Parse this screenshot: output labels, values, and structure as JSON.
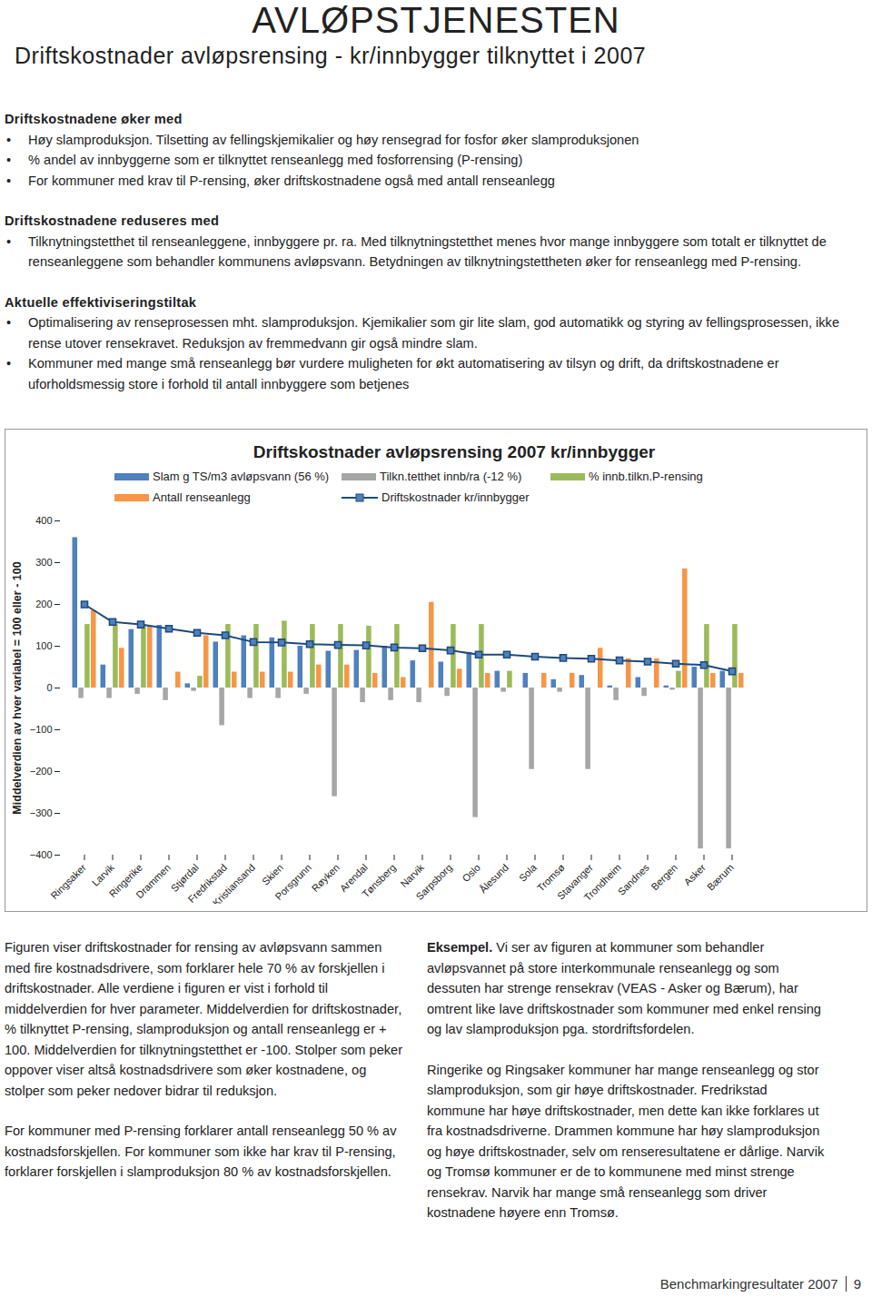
{
  "header": {
    "title": "AVLØPSTJENESTEN",
    "subtitle": "Driftskostnader avløpsrensing - kr/innbygger tilknyttet i 2007"
  },
  "sections": [
    {
      "heading": "Driftskostnadene øker med",
      "bullets": [
        "Høy slamproduksjon. Tilsetting av fellingskjemikalier og høy rensegrad for fosfor øker slamproduksjonen",
        "% andel av innbyggerne som er tilknyttet renseanlegg med fosforrensing (P-rensing)",
        "For kommuner med krav til P-rensing, øker driftskostnadene også med antall renseanlegg"
      ]
    },
    {
      "heading": "Driftskostnadene reduseres med",
      "bullets": [
        "Tilknytningstetthet til renseanleggene, innbyggere pr. ra. Med tilknytningstetthet menes hvor mange innbyggere som totalt er tilknyttet de renseanleggene som behandler kommunens avløpsvann. Betydningen av  tilknytningstettheten øker for renseanlegg med P-rensing."
      ]
    },
    {
      "heading": "Aktuelle effektiviseringstiltak",
      "bullets": [
        "Optimalisering av renseprosessen mht. slamproduksjon. Kjemikalier som gir lite slam, god automatikk og styring av fellingsprosessen, ikke rense utover rensekravet. Reduksjon av fremmedvann gir også mindre slam.",
        "Kommuner med mange små renseanlegg bør vurdere muligheten for økt automatisering av tilsyn og drift, da driftskostnadene er uforholdsmessig store i forhold til antall innbyggere som betjenes"
      ]
    }
  ],
  "chart_data": {
    "type": "bar",
    "title": "Driftskostnader avløpsrensing  2007 kr/innbygger",
    "y_label": "Middelverdien av hver variabel = 100 eller - 100",
    "legend": "top",
    "categories": [
      "Ringsaker",
      "Larvik",
      "Ringerike",
      "Drammen",
      "Stjørdal",
      "Fredrikstad",
      "Kristiansand",
      "Skien",
      "Porsgrunn",
      "Røyken",
      "Arendal",
      "Tønsberg",
      "Narvik",
      "Sarpsborg",
      "Oslo",
      "Ålesund",
      "Sola",
      "Tromsø",
      "Stavanger",
      "Trondheim",
      "Sandnes",
      "Bergen",
      "Asker",
      "Bærum"
    ],
    "ylim": [
      -400,
      400
    ],
    "yticks": [
      -400,
      -300,
      -200,
      -100,
      0,
      100,
      200,
      300,
      400
    ],
    "series": [
      {
        "name": "Slam g TS/m3 avløpsvann (56 %)",
        "type": "bar",
        "color": "#4f81bd",
        "values": [
          360,
          55,
          140,
          150,
          10,
          110,
          125,
          120,
          100,
          88,
          90,
          100,
          65,
          62,
          85,
          40,
          35,
          20,
          30,
          5,
          25,
          5,
          50,
          40
        ]
      },
      {
        "name": "Tilkn.tetthet innb/ra (-12 %)",
        "type": "bar",
        "color": "#a6a6a6",
        "values": [
          -25,
          -25,
          -15,
          -30,
          -8,
          -90,
          -25,
          -25,
          -15,
          -260,
          -35,
          -30,
          -35,
          -20,
          -310,
          -10,
          -195,
          -10,
          -195,
          -30,
          -20,
          -5,
          -385,
          -385
        ]
      },
      {
        "name": "% innb.tilkn.P-rensing",
        "type": "bar",
        "color": "#9bbb59",
        "values": [
          152,
          152,
          152,
          0,
          28,
          152,
          152,
          160,
          152,
          152,
          148,
          152,
          0,
          152,
          152,
          40,
          0,
          0,
          0,
          0,
          0,
          40,
          152,
          152
        ]
      },
      {
        "name": "Antall renseanlegg",
        "type": "bar",
        "color": "#f79646",
        "values": [
          185,
          95,
          148,
          38,
          125,
          38,
          38,
          38,
          55,
          55,
          35,
          25,
          205,
          45,
          35,
          0,
          35,
          35,
          95,
          70,
          70,
          285,
          35,
          35
        ]
      },
      {
        "name": "Driftskostnader kr/innbygger",
        "type": "line",
        "color": "#1f497d",
        "marker": "square",
        "values": [
          200,
          158,
          152,
          142,
          132,
          126,
          110,
          109,
          105,
          103,
          102,
          97,
          95,
          90,
          80,
          80,
          75,
          72,
          70,
          66,
          63,
          58,
          55,
          40
        ]
      }
    ]
  },
  "columns": [
    [
      {
        "text": "Figuren viser driftskostnader for rensing av avløpsvann sammen med fire kostnadsdrivere, som forklarer hele 70 % av forskjellen i driftskostnader. Alle verdiene i figuren er vist i forhold til middelverdien for hver parameter. Middelverdien for driftskostnader, % tilknyttet P-rensing, slamproduksjon og antall renseanlegg er + 100. Middelverdien for tilknytningstetthet er -100. Stolper som peker oppover viser altså kostnadsdrivere som øker kostnadene, og stolper som peker nedover bidrar til reduksjon."
      },
      {
        "text": "For kommuner med P-rensing forklarer antall renseanlegg 50 % av kostnadsforskjellen. For kommuner som ikke har krav til P-rensing, forklarer forskjellen i slamproduksjon 80 % av kostnadsforskjellen."
      }
    ],
    [
      {
        "lead": "Eksempel.",
        "text": "Vi ser av figuren at kommuner som behandler avløpsvannet på store interkommunale renseanlegg og som dessuten har strenge rensekrav (VEAS - Asker og Bærum), har omtrent like lave driftskostnader som kommuner med enkel rensing og lav slamproduksjon pga. stordriftsfordelen."
      },
      {
        "text": "Ringerike og Ringsaker kommuner har mange renseanlegg og stor slamproduksjon, som gir høye driftskostnader. Fredrikstad kommune har høye driftskostnader, men dette kan ikke forklares ut fra kostnadsdriverne. Drammen kommune har høy slamproduksjon og høye driftskostnader, selv om renseresultatene er dårlige. Narvik og Tromsø kommuner er de to kommunene med minst strenge rensekrav. Narvik har mange små renseanlegg som driver kostnadene høyere enn Tromsø."
      }
    ]
  ],
  "footer": {
    "text": "Benchmarkingresultater 2007",
    "page": 9
  }
}
